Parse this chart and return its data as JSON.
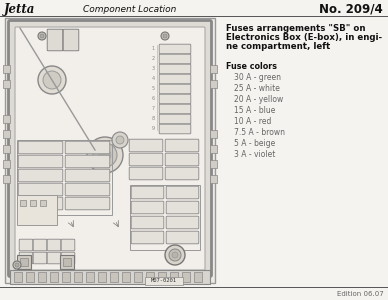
{
  "title_left": "Jetta",
  "title_center": "Component Location",
  "title_right": "No. 209/4",
  "description_line1": "Fuses arrangements \"SB\" on",
  "description_line2": "Electronics Box (E-box), in engi-",
  "description_line3": "ne compartment, left",
  "fuse_colors_label": "Fuse colors",
  "fuse_entries": [
    "30 A - green",
    "25 A - white",
    "20 A - yellow",
    "15 A - blue",
    "10 A - red",
    "7.5 A - brown",
    "5 A - beige",
    "3 A - violet"
  ],
  "footer": "Edition 06.07",
  "image_label": "M07-0201",
  "bg_color": "#f5f3f0",
  "outer_box_face": "#e8e5e0",
  "inner_box_face": "#f0ede8",
  "fuse_fill": "#e0dcd6",
  "fuse_edge": "#888888",
  "edge_color": "#777777",
  "text_dark": "#111111",
  "text_mid": "#444444",
  "text_light": "#666666",
  "header_line_color": "#555555"
}
